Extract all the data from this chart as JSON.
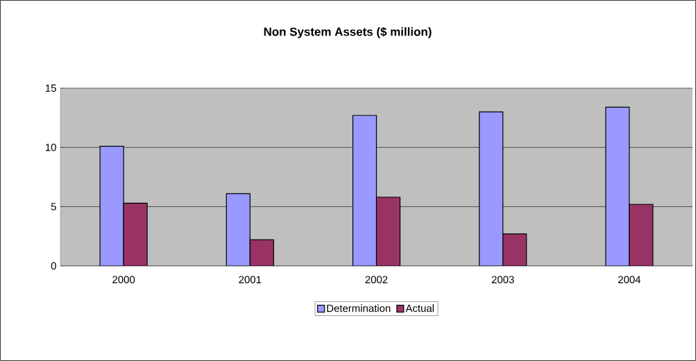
{
  "chart_data": {
    "type": "bar",
    "title": "Non System Assets ($ million)",
    "categories": [
      "2000",
      "2001",
      "2002",
      "2003",
      "2004"
    ],
    "series": [
      {
        "name": "Determination",
        "color": "#9999ff",
        "values": [
          10.1,
          6.1,
          12.7,
          13.0,
          13.4
        ]
      },
      {
        "name": "Actual",
        "color": "#993366",
        "values": [
          5.3,
          2.2,
          5.8,
          2.7,
          5.2
        ]
      }
    ],
    "ylim": [
      0,
      15
    ],
    "yticks": [
      0,
      5,
      10,
      15
    ],
    "grid": "y",
    "legend": "bottom"
  }
}
